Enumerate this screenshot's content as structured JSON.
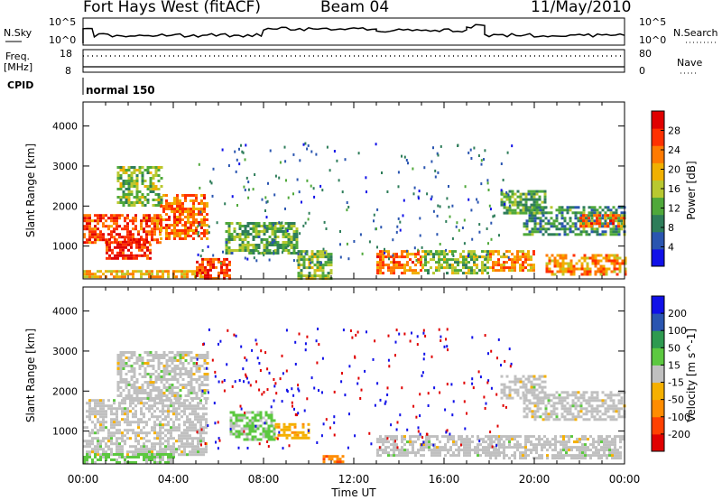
{
  "header": {
    "station": "Fort Hays West (fitACF)",
    "beam": "Beam 04",
    "date": "11/May/2010"
  },
  "noise_panel": {
    "left_label": "N.Sky",
    "right_label": "N.Search",
    "ticks": [
      "10^5",
      "10^0"
    ]
  },
  "freq_panel": {
    "left_label_line1": "Freq.",
    "left_label_line2": "[MHz]",
    "left_ticks": [
      "18",
      "8"
    ],
    "right_label": "Nave",
    "right_ticks": [
      "80",
      "0"
    ]
  },
  "cpid_panel": {
    "label": "CPID",
    "mode": "normal 150"
  },
  "x_axis": {
    "label": "Time UT",
    "ticks": [
      "00:00",
      "04:00",
      "08:00",
      "12:00",
      "16:00",
      "20:00",
      "00:00"
    ]
  },
  "colors": {
    "power": [
      "#1010e8",
      "#2a55b0",
      "#2e7d5a",
      "#4fa83a",
      "#b8c830",
      "#f0b000",
      "#ff7a00",
      "#ff3000",
      "#e00000"
    ],
    "velocity": [
      "#e00000",
      "#ff4000",
      "#ff8c00",
      "#f5b000",
      "#c0c0c0",
      "#5cc840",
      "#2e9a50",
      "#2a55b0",
      "#1010e8"
    ]
  },
  "chart_data": [
    {
      "type": "heatmap",
      "panel": "power",
      "ylabel": "Slant Range [km]",
      "xlabel": "Time UT",
      "xlim_hours": [
        0,
        24
      ],
      "ylim": [
        180,
        4600
      ],
      "yticks": [
        1000,
        2000,
        3000,
        4000
      ],
      "colorbar": {
        "label": "Power [dB]",
        "ticks": [
          4,
          8,
          12,
          16,
          20,
          24,
          28
        ],
        "range": [
          0,
          32
        ]
      },
      "regions": [
        {
          "t": [
            0.0,
            3.4
          ],
          "r": [
            1100,
            1800
          ],
          "v": 26
        },
        {
          "t": [
            1.0,
            3.0
          ],
          "r": [
            700,
            1200
          ],
          "v": 28
        },
        {
          "t": [
            3.4,
            5.5
          ],
          "r": [
            1200,
            2300
          ],
          "v": 24
        },
        {
          "t": [
            1.5,
            3.5
          ],
          "r": [
            2000,
            3000
          ],
          "v": 14
        },
        {
          "t": [
            0.0,
            5.5
          ],
          "r": [
            200,
            400
          ],
          "v": 20
        },
        {
          "t": [
            5.0,
            6.5
          ],
          "r": [
            200,
            700
          ],
          "v": 27
        },
        {
          "t": [
            6.3,
            9.5
          ],
          "r": [
            800,
            1600
          ],
          "v": 12
        },
        {
          "t": [
            9.5,
            11.0
          ],
          "r": [
            200,
            900
          ],
          "v": 14
        },
        {
          "t": [
            13.0,
            15.0
          ],
          "r": [
            300,
            900
          ],
          "v": 24
        },
        {
          "t": [
            15.0,
            18.0
          ],
          "r": [
            300,
            900
          ],
          "v": 14
        },
        {
          "t": [
            18.0,
            20.0
          ],
          "r": [
            400,
            900
          ],
          "v": 22
        },
        {
          "t": [
            20.5,
            24.0
          ],
          "r": [
            300,
            800
          ],
          "v": 22
        },
        {
          "t": [
            19.5,
            24.0
          ],
          "r": [
            1300,
            2000
          ],
          "v": 10
        },
        {
          "t": [
            18.5,
            20.5
          ],
          "r": [
            1800,
            2400
          ],
          "v": 12
        },
        {
          "t": [
            22.0,
            24.0
          ],
          "r": [
            1500,
            1800
          ],
          "v": 24
        }
      ]
    },
    {
      "type": "heatmap",
      "panel": "velocity",
      "ylabel": "Slant Range [km]",
      "xlabel": "Time UT",
      "xlim_hours": [
        0,
        24
      ],
      "ylim": [
        180,
        4600
      ],
      "yticks": [
        1000,
        2000,
        3000,
        4000
      ],
      "colorbar": {
        "label": "Velocity [m s^-1]",
        "ticks": [
          200,
          100,
          50,
          15,
          -15,
          -50,
          -100,
          -200
        ],
        "range": [
          -250,
          250
        ]
      },
      "regions": [
        {
          "t": [
            0.0,
            5.5
          ],
          "r": [
            400,
            1800
          ],
          "v": 0
        },
        {
          "t": [
            1.5,
            5.5
          ],
          "r": [
            1800,
            3000
          ],
          "v": 0
        },
        {
          "t": [
            0.0,
            4.0
          ],
          "r": [
            200,
            450
          ],
          "v": 40
        },
        {
          "t": [
            6.5,
            8.5
          ],
          "r": [
            800,
            1500
          ],
          "v": 40
        },
        {
          "t": [
            8.5,
            10.0
          ],
          "r": [
            800,
            1200
          ],
          "v": -60
        },
        {
          "t": [
            10.5,
            11.5
          ],
          "r": [
            200,
            400
          ],
          "v": -120
        },
        {
          "t": [
            13.0,
            18.5
          ],
          "r": [
            400,
            900
          ],
          "v": 0
        },
        {
          "t": [
            18.0,
            24.0
          ],
          "r": [
            300,
            900
          ],
          "v": 0
        },
        {
          "t": [
            19.5,
            24.0
          ],
          "r": [
            1300,
            2000
          ],
          "v": 0
        },
        {
          "t": [
            18.5,
            20.5
          ],
          "r": [
            1800,
            2400
          ],
          "v": 0
        }
      ]
    }
  ]
}
